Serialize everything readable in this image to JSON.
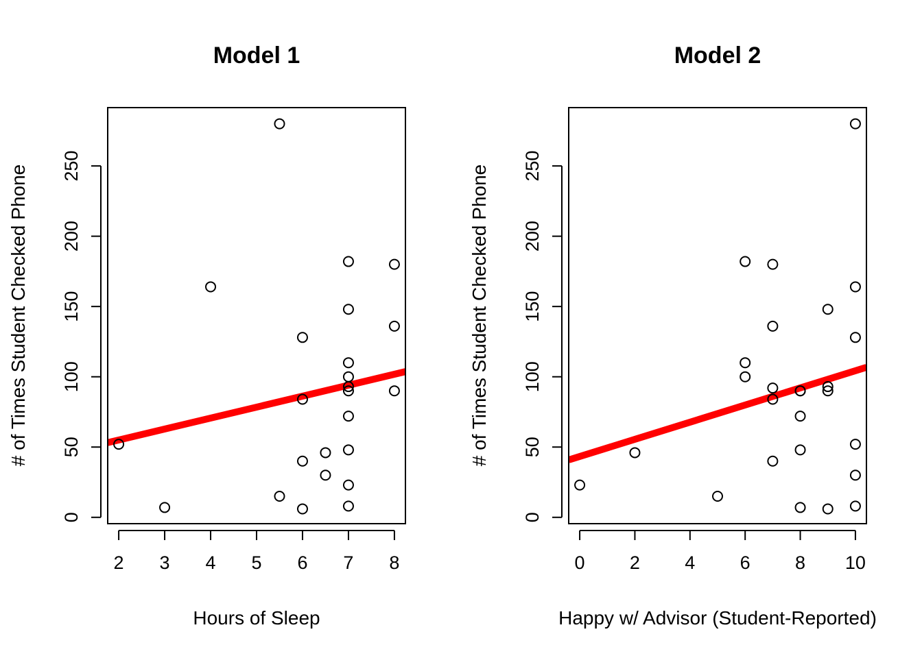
{
  "chart_data": [
    {
      "type": "scatter",
      "title": "Model 1",
      "xlabel": "Hours of Sleep",
      "ylabel": "# of Times Student Checked Phone",
      "xlim": [
        1.76,
        8.24
      ],
      "ylim": [
        -4.5,
        291.5
      ],
      "xticks": [
        "2",
        "3",
        "4",
        "5",
        "6",
        "7",
        "8"
      ],
      "yticks": [
        "0",
        "50",
        "100",
        "150",
        "200",
        "250"
      ],
      "grid": false,
      "legend": "none",
      "points": {
        "x": [
          2,
          3,
          4,
          5.5,
          5.5,
          6,
          6,
          6,
          6,
          6.5,
          6.5,
          7,
          7,
          7,
          7,
          7,
          7,
          7,
          7,
          7,
          7,
          8,
          8,
          8
        ],
        "y": [
          52,
          7,
          164,
          280,
          15,
          128,
          84,
          40,
          6,
          46,
          30,
          182,
          148,
          110,
          100,
          93,
          90,
          72,
          48,
          23,
          8,
          180,
          136,
          90
        ]
      },
      "fit_line": {
        "intercept": 39.4,
        "slope": 7.8
      },
      "colors": {
        "points": "#000000",
        "fit_line": "#ff0000"
      }
    },
    {
      "type": "scatter",
      "title": "Model 2",
      "xlabel": "Happy w/ Advisor (Student-Reported)",
      "ylabel": "# of Times Student Checked Phone",
      "xlim": [
        -0.4,
        10.4
      ],
      "ylim": [
        -4.5,
        291.5
      ],
      "xticks": [
        "0",
        "2",
        "4",
        "6",
        "8",
        "10"
      ],
      "yticks": [
        "0",
        "50",
        "100",
        "150",
        "200",
        "250"
      ],
      "grid": false,
      "legend": "none",
      "points": {
        "x": [
          0,
          2,
          5,
          6,
          6,
          6,
          7,
          7,
          7,
          7,
          7,
          8,
          8,
          8,
          8,
          8,
          9,
          9,
          9,
          9,
          10,
          10,
          10,
          10,
          10,
          10
        ],
        "y": [
          23,
          46,
          15,
          182,
          110,
          100,
          180,
          136,
          92,
          84,
          40,
          90,
          72,
          48,
          7,
          90,
          148,
          93,
          90,
          6,
          280,
          164,
          128,
          52,
          30,
          8
        ]
      },
      "fit_line": {
        "intercept": 43.3,
        "slope": 6.1
      },
      "colors": {
        "points": "#000000",
        "fit_line": "#ff0000"
      }
    }
  ]
}
